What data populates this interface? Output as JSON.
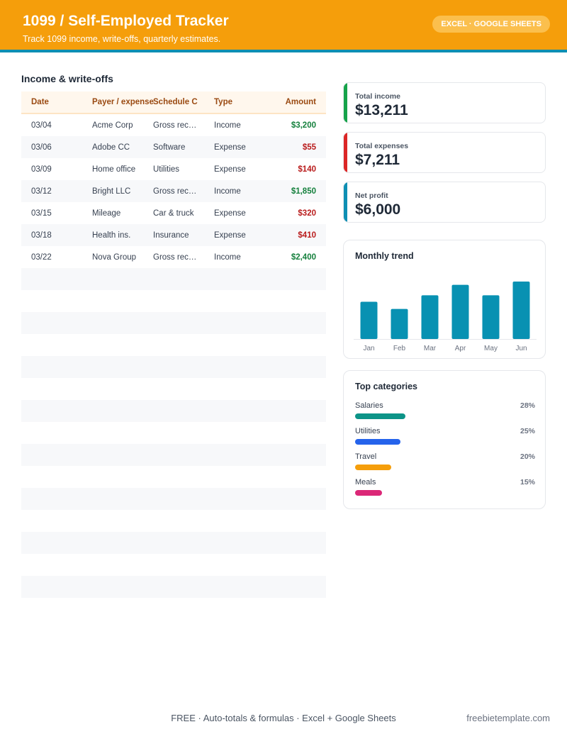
{
  "header": {
    "title": "1099 / Self-Employed Tracker",
    "subtitle": "Track 1099 income, write-offs, quarterly estimates.",
    "badge": "EXCEL · GOOGLE SHEETS"
  },
  "ledger": {
    "title": "Income & write-offs",
    "columns": [
      "Date",
      "Payer / expense",
      "Schedule C",
      "Type",
      "Amount"
    ],
    "rows": [
      {
        "date": "03/04",
        "payer": "Acme Corp",
        "schedule": "Gross rec…",
        "type": "Income",
        "amount": "$3,200"
      },
      {
        "date": "03/06",
        "payer": "Adobe CC",
        "schedule": "Software",
        "type": "Expense",
        "amount": "$55"
      },
      {
        "date": "03/09",
        "payer": "Home office",
        "schedule": "Utilities",
        "type": "Expense",
        "amount": "$140"
      },
      {
        "date": "03/12",
        "payer": "Bright LLC",
        "schedule": "Gross rec…",
        "type": "Income",
        "amount": "$1,850"
      },
      {
        "date": "03/15",
        "payer": "Mileage",
        "schedule": "Car & truck",
        "type": "Expense",
        "amount": "$320"
      },
      {
        "date": "03/18",
        "payer": "Health ins.",
        "schedule": "Insurance",
        "type": "Expense",
        "amount": "$410"
      },
      {
        "date": "03/22",
        "payer": "Nova Group",
        "schedule": "Gross rec…",
        "type": "Income",
        "amount": "$2,400"
      }
    ],
    "empty_rows": 15
  },
  "kpis": [
    {
      "label": "Total income",
      "value": "$13,211",
      "color": "#16a34a"
    },
    {
      "label": "Total expenses",
      "value": "$7,211",
      "color": "#dc2626"
    },
    {
      "label": "Net profit",
      "value": "$6,000",
      "color": "#0e8fb3"
    }
  ],
  "trend": {
    "title": "Monthly trend",
    "bar_color": "#0891b2"
  },
  "chart_data": {
    "type": "bar",
    "categories": [
      "Jan",
      "Feb",
      "Mar",
      "Apr",
      "May",
      "Jun"
    ],
    "values": [
      57,
      46,
      67,
      83,
      67,
      88
    ],
    "ylim": [
      0,
      100
    ],
    "grid": false,
    "legend": "none"
  },
  "categories": {
    "title": "Top categories",
    "items": [
      {
        "name": "Salaries",
        "pct": "28%",
        "share": 0.28,
        "color": "#0d9488"
      },
      {
        "name": "Utilities",
        "pct": "25%",
        "share": 0.25,
        "color": "#2563eb"
      },
      {
        "name": "Travel",
        "pct": "20%",
        "share": 0.2,
        "color": "#f59e0b"
      },
      {
        "name": "Meals",
        "pct": "15%",
        "share": 0.15,
        "color": "#db2777"
      }
    ]
  },
  "footer": {
    "features": "FREE  ·  Auto-totals & formulas  ·  Excel + Google Sheets",
    "site": "freebietemplate.com"
  }
}
